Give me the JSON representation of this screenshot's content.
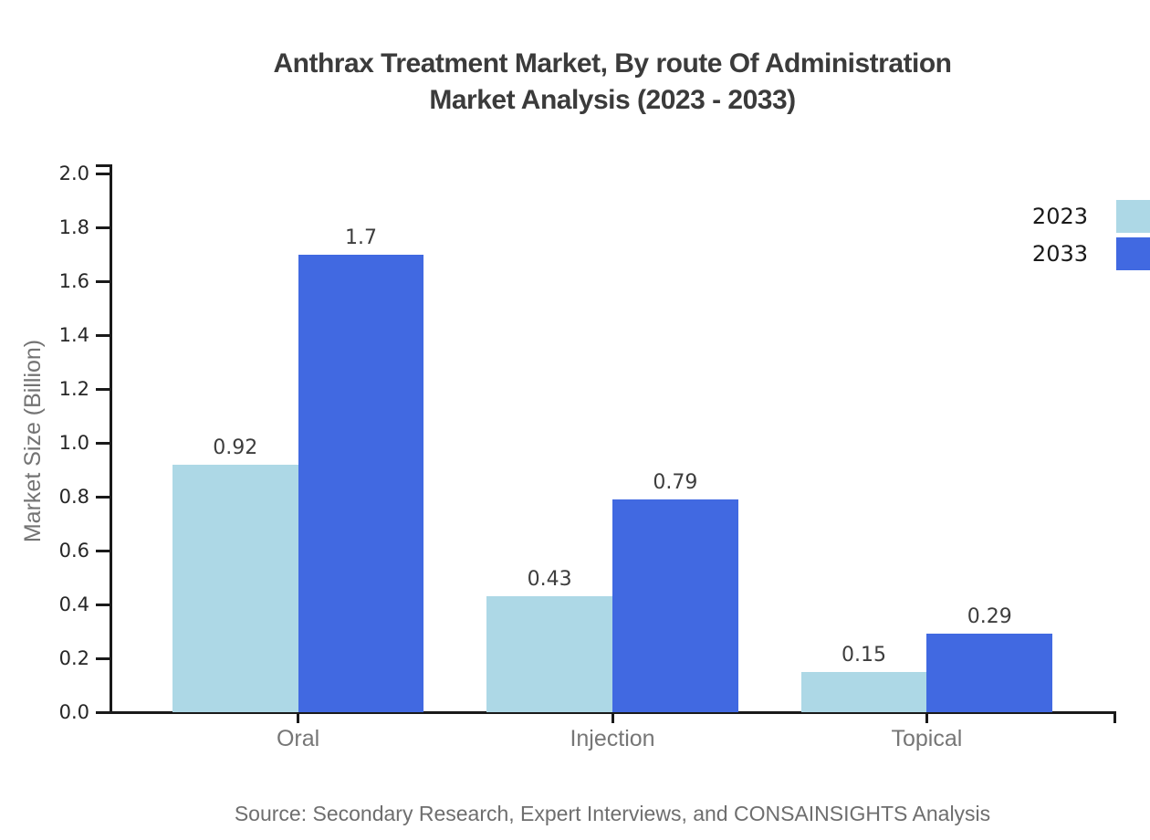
{
  "chart_data": {
    "type": "bar",
    "title": "Anthrax Treatment Market, By route Of Administration",
    "subtitle": "Market Analysis (2023 - 2033)",
    "ylabel": "Market Size (Billion)",
    "categories": [
      "Oral",
      "Injection",
      "Topical"
    ],
    "series": [
      {
        "name": "2023",
        "color": "#add8e6",
        "values": [
          0.92,
          0.43,
          0.15
        ],
        "labels": [
          "0.92",
          "0.43",
          "0.15"
        ]
      },
      {
        "name": "2033",
        "color": "#4169e1",
        "values": [
          1.7,
          0.79,
          0.29
        ],
        "labels": [
          "1.7",
          "0.79",
          "0.29"
        ]
      }
    ],
    "ylim": [
      0,
      2.0
    ],
    "ytick_labels": [
      "0.0",
      "0.2",
      "0.4",
      "0.6",
      "0.8",
      "1.0",
      "1.2",
      "1.4",
      "1.6",
      "1.8",
      "2.0"
    ],
    "grid": false,
    "legend_position": "top-right",
    "bar_width_fraction": 0.4,
    "x_units_range": 3.2
  },
  "colors": {
    "axis": "#1a1a1a"
  },
  "footer": {
    "source": "Source: Secondary Research, Expert Interviews, and CONSAINSIGHTS Analysis"
  }
}
